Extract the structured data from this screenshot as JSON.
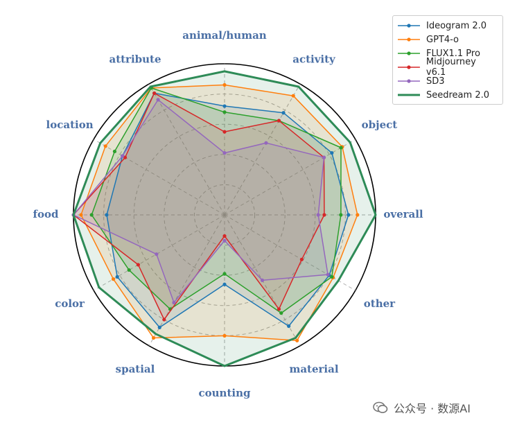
{
  "chart_data": {
    "type": "radar",
    "axes": [
      "overall",
      "object",
      "activity",
      "animal/human",
      "attribute",
      "location",
      "food",
      "color",
      "spatial",
      "counting",
      "material",
      "other"
    ],
    "rmax": 1.0,
    "grid_levels": [
      0.2,
      0.4,
      0.6,
      0.8,
      1.0
    ],
    "legend_position": "top-right",
    "series": [
      {
        "name": "Ideogram 2.0",
        "color": "#1f77b4",
        "linewidth": 1.5,
        "values": [
          0.82,
          0.82,
          0.78,
          0.72,
          0.93,
          0.78,
          0.78,
          0.82,
          0.86,
          0.46,
          0.85,
          0.8
        ]
      },
      {
        "name": "GPT4-o",
        "color": "#ff7f0e",
        "linewidth": 1.5,
        "values": [
          0.88,
          0.9,
          0.91,
          0.86,
          0.97,
          0.91,
          0.95,
          0.85,
          0.94,
          0.8,
          0.96,
          0.83
        ]
      },
      {
        "name": "FLUX1.1 Pro",
        "color": "#2ca02c",
        "linewidth": 1.5,
        "values": [
          0.77,
          0.89,
          0.72,
          0.68,
          0.97,
          0.84,
          0.88,
          0.73,
          0.72,
          0.39,
          0.75,
          0.82
        ]
      },
      {
        "name": "Midjourney v6.1",
        "color": "#d62728",
        "linewidth": 1.5,
        "values": [
          0.66,
          0.76,
          0.72,
          0.55,
          0.93,
          0.76,
          1.0,
          0.66,
          0.8,
          0.14,
          0.72,
          0.59
        ]
      },
      {
        "name": "SD3",
        "color": "#9467bd",
        "linewidth": 1.5,
        "values": [
          0.62,
          0.76,
          0.55,
          0.41,
          0.88,
          0.78,
          1.0,
          0.52,
          0.67,
          0.17,
          0.5,
          0.79
        ]
      },
      {
        "name": "Seedream 2.0",
        "color": "#2e8b57",
        "linewidth": 3,
        "values": [
          1.0,
          0.96,
          0.98,
          0.95,
          0.98,
          0.95,
          1.0,
          0.96,
          0.91,
          1.0,
          0.94,
          0.87
        ]
      }
    ]
  },
  "watermark": {
    "text": "公众号 · 数源AI",
    "icon": "wechat-icon"
  }
}
